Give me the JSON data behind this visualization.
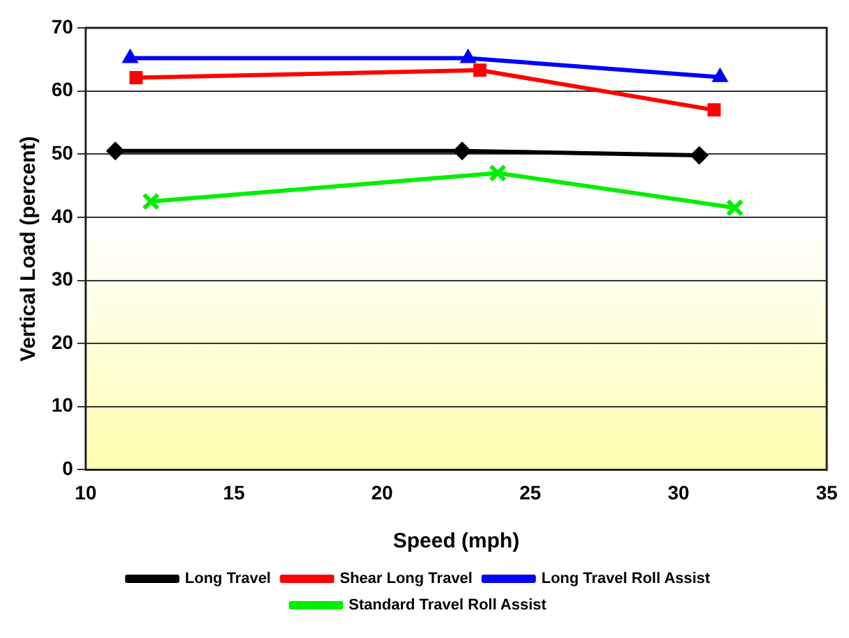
{
  "chart_data": {
    "type": "line",
    "xlabel": "Speed (mph)",
    "ylabel": "Vertical Load (percent)",
    "xlim": [
      10,
      35
    ],
    "xticks": [
      10,
      15,
      20,
      25,
      30,
      35
    ],
    "ylim": [
      0,
      70
    ],
    "yticks": [
      0,
      10,
      20,
      30,
      40,
      50,
      60,
      70
    ],
    "grid": "y",
    "legend": "bottom",
    "series": [
      {
        "name": "Long Travel",
        "color": "#000000",
        "marker": "diamond",
        "x": [
          11.0,
          22.7,
          30.7
        ],
        "values": [
          50.5,
          50.5,
          49.8
        ]
      },
      {
        "name": "Shear Long Travel",
        "color": "#ff0000",
        "marker": "square",
        "x": [
          11.7,
          23.3,
          31.2
        ],
        "values": [
          62.1,
          63.3,
          57.0
        ]
      },
      {
        "name": "Long Travel Roll Assist",
        "color": "#0000ff",
        "marker": "triangle",
        "x": [
          11.5,
          22.9,
          31.4
        ],
        "values": [
          65.2,
          65.2,
          62.2
        ]
      },
      {
        "name": "Standard Travel Roll Assist",
        "color": "#00ee00",
        "marker": "cross",
        "x": [
          12.2,
          23.9,
          31.9
        ],
        "values": [
          42.5,
          47.0,
          41.5
        ]
      }
    ]
  }
}
